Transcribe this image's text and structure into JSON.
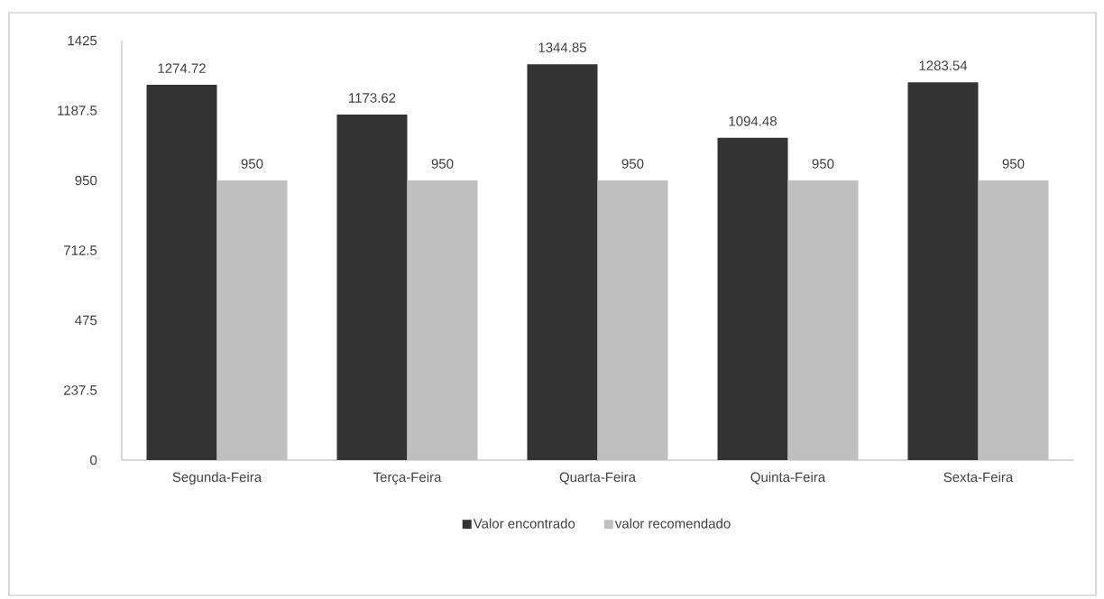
{
  "chart_data": {
    "type": "bar",
    "categories": [
      "Segunda-Feira",
      "Terça-Feira",
      "Quarta-Feira",
      "Quinta-Feira",
      "Sexta-Feira"
    ],
    "series": [
      {
        "name": "Valor encontrado",
        "color": "#333333",
        "values": [
          1274.72,
          1173.62,
          1344.85,
          1094.48,
          1283.54
        ]
      },
      {
        "name": "valor recomendado",
        "color": "#bfbfbf",
        "values": [
          950,
          950,
          950,
          950,
          950
        ]
      }
    ],
    "ylim": [
      0,
      1425
    ],
    "yticks": [
      0,
      237.5,
      475,
      712.5,
      950,
      1187.5,
      1425
    ],
    "data_labels": true,
    "grid": false,
    "legend": "bottom"
  }
}
